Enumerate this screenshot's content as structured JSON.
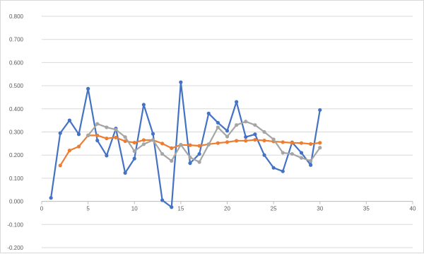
{
  "chart_data": {
    "type": "scatter",
    "title": "",
    "xlabel": "",
    "ylabel": "",
    "xlim": [
      0,
      40
    ],
    "ylim": [
      -0.2,
      0.8
    ],
    "x_ticks": [
      "0",
      "5",
      "10",
      "15",
      "20",
      "25",
      "30",
      "35",
      "40"
    ],
    "y_ticks": [
      "0.800",
      "0.700",
      "0.600",
      "0.500",
      "0.400",
      "0.300",
      "0.200",
      "0.100",
      "0.000",
      "-0.100",
      "-0.200"
    ],
    "x_tick_values": [
      0,
      5,
      10,
      15,
      20,
      25,
      30,
      35,
      40
    ],
    "y_tick_values": [
      0.8,
      0.7,
      0.6,
      0.5,
      0.4,
      0.3,
      0.2,
      0.1,
      0.0,
      -0.1,
      -0.2
    ],
    "grid": "horizontal",
    "legend": "none",
    "series": [
      {
        "color": "#4472c4",
        "points": [
          [
            1,
            0.015
          ],
          [
            2,
            0.295
          ],
          [
            3,
            0.35
          ],
          [
            4,
            0.29
          ],
          [
            5,
            0.487
          ],
          [
            6,
            0.263
          ],
          [
            7,
            0.198
          ],
          [
            8,
            0.315
          ],
          [
            9,
            0.123
          ],
          [
            10,
            0.185
          ],
          [
            11,
            0.418
          ],
          [
            12,
            0.292
          ],
          [
            13,
            0.005
          ],
          [
            14,
            -0.025
          ],
          [
            15,
            0.515
          ],
          [
            16,
            0.165
          ],
          [
            17,
            0.205
          ],
          [
            18,
            0.38
          ],
          [
            19,
            0.34
          ],
          [
            20,
            0.305
          ],
          [
            21,
            0.43
          ],
          [
            22,
            0.278
          ],
          [
            23,
            0.29
          ],
          [
            24,
            0.2
          ],
          [
            25,
            0.145
          ],
          [
            26,
            0.13
          ],
          [
            27,
            0.255
          ],
          [
            28,
            0.21
          ],
          [
            29,
            0.157
          ],
          [
            30,
            0.395
          ]
        ]
      },
      {
        "color": "#ed7d31",
        "points": [
          [
            2,
            0.155
          ],
          [
            3,
            0.22
          ],
          [
            4,
            0.237
          ],
          [
            5,
            0.285
          ],
          [
            6,
            0.285
          ],
          [
            7,
            0.272
          ],
          [
            8,
            0.276
          ],
          [
            9,
            0.26
          ],
          [
            10,
            0.254
          ],
          [
            11,
            0.265
          ],
          [
            12,
            0.265
          ],
          [
            13,
            0.25
          ],
          [
            14,
            0.23
          ],
          [
            15,
            0.244
          ],
          [
            16,
            0.243
          ],
          [
            17,
            0.24
          ],
          [
            18,
            0.247
          ],
          [
            19,
            0.252
          ],
          [
            20,
            0.256
          ],
          [
            21,
            0.262
          ],
          [
            22,
            0.262
          ],
          [
            23,
            0.266
          ],
          [
            24,
            0.263
          ],
          [
            25,
            0.259
          ],
          [
            26,
            0.256
          ],
          [
            27,
            0.253
          ],
          [
            28,
            0.252
          ],
          [
            29,
            0.248
          ],
          [
            30,
            0.253
          ]
        ]
      },
      {
        "color": "#a5a5a5",
        "points": [
          [
            5,
            0.285
          ],
          [
            6,
            0.335
          ],
          [
            7,
            0.32
          ],
          [
            8,
            0.31
          ],
          [
            9,
            0.278
          ],
          [
            10,
            0.217
          ],
          [
            11,
            0.247
          ],
          [
            12,
            0.265
          ],
          [
            13,
            0.205
          ],
          [
            14,
            0.175
          ],
          [
            15,
            0.245
          ],
          [
            16,
            0.19
          ],
          [
            17,
            0.17
          ],
          [
            18,
            0.245
          ],
          [
            19,
            0.32
          ],
          [
            20,
            0.28
          ],
          [
            21,
            0.33
          ],
          [
            22,
            0.345
          ],
          [
            23,
            0.33
          ],
          [
            24,
            0.3
          ],
          [
            25,
            0.268
          ],
          [
            26,
            0.21
          ],
          [
            27,
            0.205
          ],
          [
            28,
            0.188
          ],
          [
            29,
            0.175
          ],
          [
            30,
            0.232
          ]
        ]
      }
    ]
  }
}
